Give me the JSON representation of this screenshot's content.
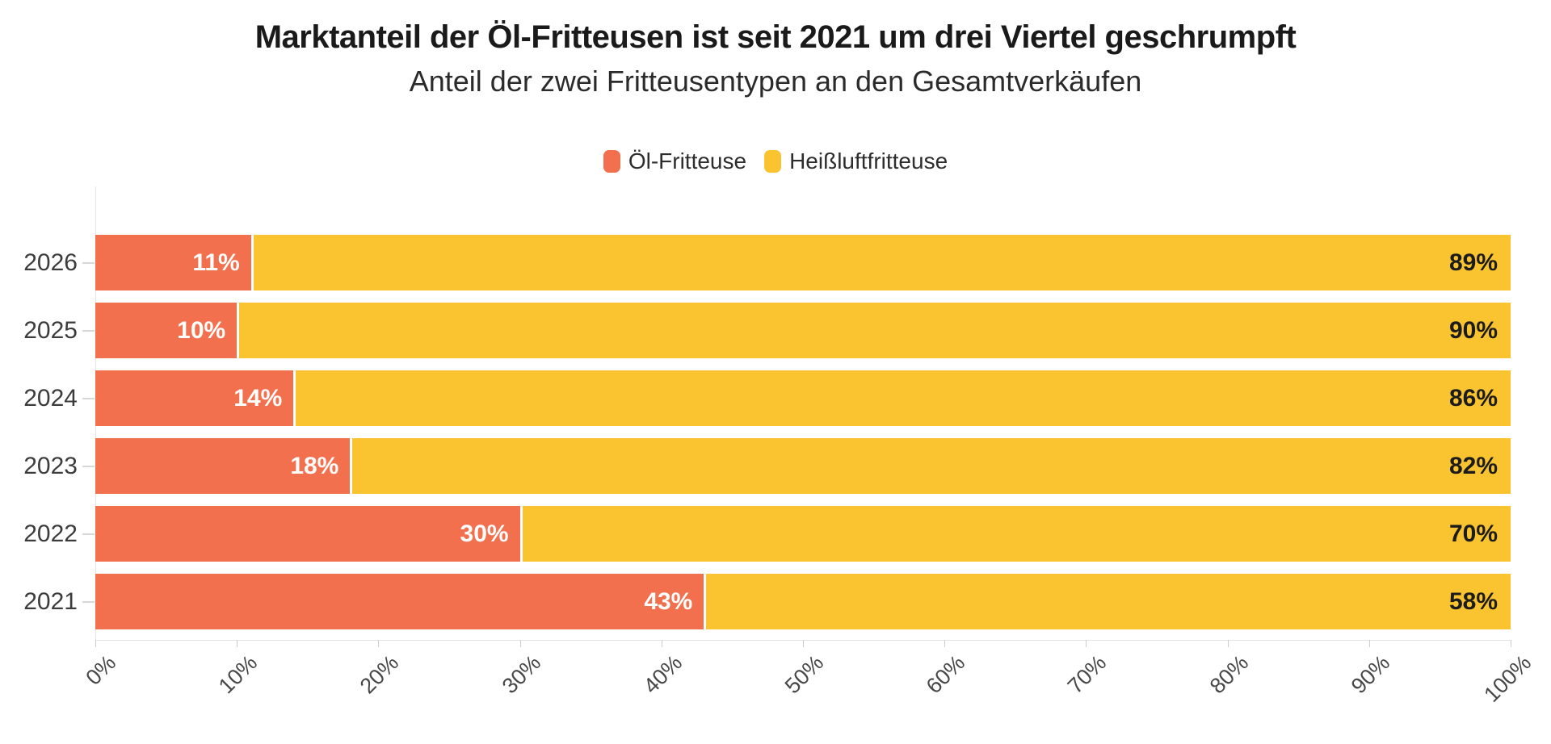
{
  "header": {
    "title": "Marktanteil der Öl-Fritteusen ist seit 2021 um drei Viertel geschrumpft",
    "subtitle": "Anteil der zwei Fritteusentypen an den Gesamtverkäufen"
  },
  "legend": [
    {
      "label": "Öl-Fritteuse",
      "color": "#F2704D"
    },
    {
      "label": "Heißluftfritteuse",
      "color": "#FAC431"
    }
  ],
  "chart_data": {
    "type": "bar",
    "orientation": "horizontal",
    "stacked": true,
    "title": "Marktanteil der Öl-Fritteusen ist seit 2021 um drei Viertel geschrumpft",
    "subtitle": "Anteil der zwei Fritteusentypen an den Gesamtverkäufen",
    "categories": [
      "2026",
      "2025",
      "2024",
      "2023",
      "2022",
      "2021"
    ],
    "series": [
      {
        "name": "Öl-Fritteuse",
        "color": "#F2704D",
        "values": [
          11,
          10,
          14,
          18,
          30,
          43
        ],
        "labels": [
          "11%",
          "10%",
          "14%",
          "18%",
          "30%",
          "43%"
        ]
      },
      {
        "name": "Heißluftfritteuse",
        "color": "#FAC431",
        "values": [
          89,
          90,
          86,
          82,
          70,
          58
        ],
        "labels": [
          "89%",
          "90%",
          "86%",
          "82%",
          "70%",
          "58%"
        ]
      }
    ],
    "xlabel": "",
    "ylabel": "",
    "xlim": [
      0,
      100
    ],
    "x_ticks": [
      "0%",
      "10%",
      "20%",
      "30%",
      "40%",
      "50%",
      "60%",
      "70%",
      "80%",
      "90%",
      "100%"
    ],
    "grid": "zero-line-only",
    "legend_position": "top-center"
  },
  "colors": {
    "oil": "#F2704D",
    "air": "#FAC431",
    "title_text": "#1a1a1a",
    "subtitle_text": "#2b2b2b",
    "axis_text": "#474747",
    "year_text": "#3c3c3c",
    "oil_value_text": "#ffffff",
    "air_value_text": "#1c1c1c",
    "axis_line": "#e3e3e3",
    "background": "#ffffff"
  }
}
